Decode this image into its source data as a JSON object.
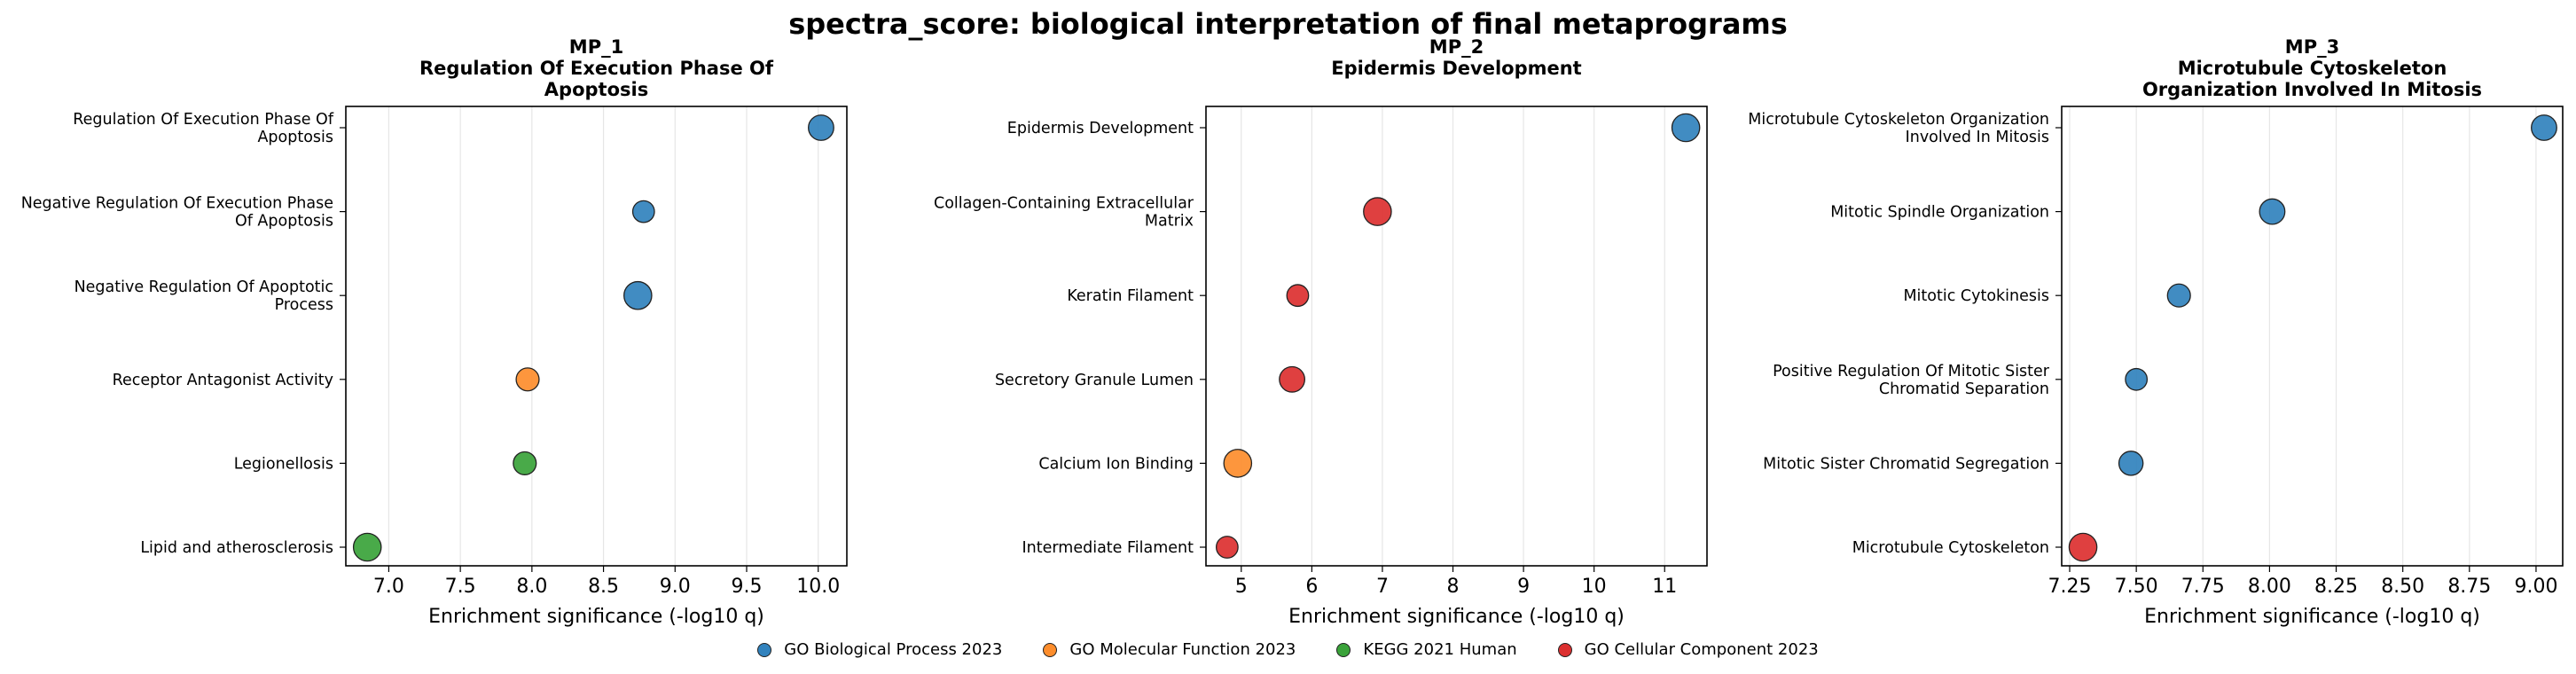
{
  "suptitle": "spectra_score: biological interpretation of final metaprograms",
  "colors": {
    "GO Biological Process 2023": "#3182bd",
    "GO Molecular Function 2023": "#fd8d2c",
    "KEGG 2021 Human": "#3aa33a",
    "GO Cellular Component 2023": "#dc3030"
  },
  "legend": [
    {
      "label": "GO Biological Process 2023",
      "color": "#3182bd"
    },
    {
      "label": "GO Molecular Function 2023",
      "color": "#fd8d2c"
    },
    {
      "label": "KEGG 2021 Human",
      "color": "#3aa33a"
    },
    {
      "label": "GO Cellular Component 2023",
      "color": "#dc3030"
    }
  ],
  "chart_data": [
    {
      "type": "scatter",
      "title": [
        "MP_1",
        "Regulation Of Execution Phase Of",
        "Apoptosis"
      ],
      "xlabel": "Enrichment significance (-log10 q)",
      "xlim": [
        6.7,
        10.2
      ],
      "xticks": [
        "7.0",
        "7.5",
        "8.0",
        "8.5",
        "9.0",
        "9.5",
        "10.0"
      ],
      "grid": "vertical",
      "points": [
        {
          "label": [
            "Regulation Of Execution Phase Of",
            "Apoptosis"
          ],
          "x": 10.02,
          "library": "GO Biological Process 2023",
          "size": 2.1
        },
        {
          "label": [
            "Negative Regulation Of Execution Phase",
            "Of Apoptosis"
          ],
          "x": 8.78,
          "library": "GO Biological Process 2023",
          "size": 1.8
        },
        {
          "label": [
            "Negative Regulation Of Apoptotic",
            "Process"
          ],
          "x": 8.74,
          "library": "GO Biological Process 2023",
          "size": 2.3
        },
        {
          "label": [
            "Receptor Antagonist Activity"
          ],
          "x": 7.97,
          "library": "GO Molecular Function 2023",
          "size": 1.9
        },
        {
          "label": [
            "Legionellosis"
          ],
          "x": 7.95,
          "library": "KEGG 2021 Human",
          "size": 1.9
        },
        {
          "label": [
            "Lipid and atherosclerosis"
          ],
          "x": 6.85,
          "library": "KEGG 2021 Human",
          "size": 2.3
        }
      ]
    },
    {
      "type": "scatter",
      "title": [
        "MP_2",
        "Epidermis Development"
      ],
      "xlabel": "Enrichment significance (-log10 q)",
      "xlim": [
        4.5,
        11.6
      ],
      "xticks": [
        "5",
        "6",
        "7",
        "8",
        "9",
        "10",
        "11"
      ],
      "grid": "vertical",
      "points": [
        {
          "label": [
            "Epidermis Development"
          ],
          "x": 11.3,
          "library": "GO Biological Process 2023",
          "size": 2.3
        },
        {
          "label": [
            "Collagen-Containing Extracellular",
            "Matrix"
          ],
          "x": 6.93,
          "library": "GO Cellular Component 2023",
          "size": 2.3
        },
        {
          "label": [
            "Keratin Filament"
          ],
          "x": 5.8,
          "library": "GO Cellular Component 2023",
          "size": 1.8
        },
        {
          "label": [
            "Secretory Granule Lumen"
          ],
          "x": 5.72,
          "library": "GO Cellular Component 2023",
          "size": 2.1
        },
        {
          "label": [
            "Calcium Ion Binding"
          ],
          "x": 4.95,
          "library": "GO Molecular Function 2023",
          "size": 2.3
        },
        {
          "label": [
            "Intermediate Filament"
          ],
          "x": 4.8,
          "library": "GO Cellular Component 2023",
          "size": 1.8
        }
      ]
    },
    {
      "type": "scatter",
      "title": [
        "MP_3",
        "Microtubule Cytoskeleton",
        "Organization Involved In Mitosis"
      ],
      "xlabel": "Enrichment significance (-log10 q)",
      "xlim": [
        7.22,
        9.1
      ],
      "xticks": [
        "7.25",
        "7.50",
        "7.75",
        "8.00",
        "8.25",
        "8.50",
        "8.75",
        "9.00"
      ],
      "grid": "vertical",
      "points": [
        {
          "label": [
            "Microtubule Cytoskeleton Organization",
            "Involved In Mitosis"
          ],
          "x": 9.03,
          "library": "GO Biological Process 2023",
          "size": 2.1
        },
        {
          "label": [
            "Mitotic Spindle Organization"
          ],
          "x": 8.01,
          "library": "GO Biological Process 2023",
          "size": 2.1
        },
        {
          "label": [
            "Mitotic Cytokinesis"
          ],
          "x": 7.66,
          "library": "GO Biological Process 2023",
          "size": 1.9
        },
        {
          "label": [
            "Positive Regulation Of Mitotic Sister",
            "Chromatid Separation"
          ],
          "x": 7.5,
          "library": "GO Biological Process 2023",
          "size": 1.8
        },
        {
          "label": [
            "Mitotic Sister Chromatid Segregation"
          ],
          "x": 7.48,
          "library": "GO Biological Process 2023",
          "size": 2.0
        },
        {
          "label": [
            "Microtubule Cytoskeleton"
          ],
          "x": 7.3,
          "library": "GO Cellular Component 2023",
          "size": 2.3
        }
      ]
    }
  ]
}
